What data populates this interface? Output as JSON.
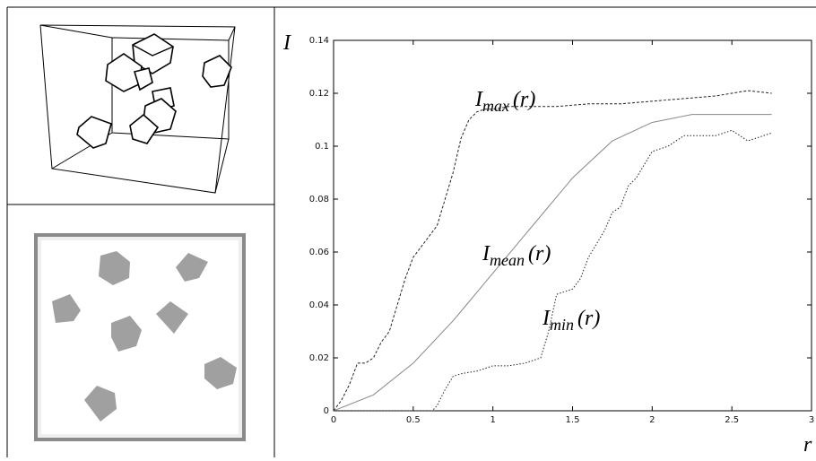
{
  "chart_data": {
    "type": "line",
    "xlabel": "r",
    "ylabel": "I",
    "xlim": [
      0,
      3
    ],
    "ylim": [
      0,
      0.14
    ],
    "xticks": [
      0,
      0.5,
      1,
      1.5,
      2,
      2.5,
      3
    ],
    "yticks": [
      0,
      0.02,
      0.04,
      0.06,
      0.08,
      0.1,
      0.12,
      0.14
    ],
    "series": [
      {
        "name": "I_max(r)",
        "color": "#222222",
        "line_style": "dashed",
        "x": [
          0,
          0.05,
          0.1,
          0.15,
          0.2,
          0.25,
          0.3,
          0.35,
          0.4,
          0.45,
          0.5,
          0.55,
          0.6,
          0.65,
          0.7,
          0.75,
          0.8,
          0.85,
          0.9,
          0.95,
          1.0,
          1.1,
          1.2,
          1.4,
          1.6,
          1.8,
          2.0,
          2.2,
          2.4,
          2.5,
          2.6,
          2.75
        ],
        "values": [
          0,
          0.004,
          0.01,
          0.018,
          0.018,
          0.02,
          0.026,
          0.03,
          0.04,
          0.05,
          0.058,
          0.062,
          0.066,
          0.07,
          0.08,
          0.09,
          0.103,
          0.11,
          0.113,
          0.114,
          0.114,
          0.115,
          0.115,
          0.115,
          0.116,
          0.116,
          0.117,
          0.118,
          0.119,
          0.12,
          0.121,
          0.12
        ]
      },
      {
        "name": "I_mean(r)",
        "color": "#888888",
        "line_style": "solid",
        "x": [
          0,
          0.25,
          0.5,
          0.75,
          1.0,
          1.25,
          1.5,
          1.75,
          2.0,
          2.25,
          2.5,
          2.75
        ],
        "values": [
          0,
          0.006,
          0.018,
          0.034,
          0.052,
          0.07,
          0.088,
          0.102,
          0.109,
          0.112,
          0.112,
          0.112
        ]
      },
      {
        "name": "I_min(r)",
        "color": "#222222",
        "line_style": "dotted",
        "x": [
          0,
          0.62,
          0.65,
          0.7,
          0.75,
          0.8,
          0.9,
          1.0,
          1.1,
          1.2,
          1.3,
          1.35,
          1.4,
          1.5,
          1.55,
          1.6,
          1.7,
          1.75,
          1.8,
          1.85,
          1.9,
          2.0,
          2.1,
          2.2,
          2.4,
          2.5,
          2.6,
          2.75
        ],
        "values": [
          0,
          0,
          0.002,
          0.008,
          0.013,
          0.014,
          0.015,
          0.017,
          0.017,
          0.018,
          0.02,
          0.03,
          0.044,
          0.046,
          0.05,
          0.058,
          0.068,
          0.075,
          0.077,
          0.085,
          0.088,
          0.098,
          0.1,
          0.104,
          0.104,
          0.106,
          0.102,
          0.105
        ]
      }
    ],
    "annotations": [
      {
        "base": "I",
        "sub": "max",
        "arg": "(r)"
      },
      {
        "base": "I",
        "sub": "mean",
        "arg": "(r)"
      },
      {
        "base": "I",
        "sub": "min",
        "arg": "(r)"
      }
    ]
  }
}
